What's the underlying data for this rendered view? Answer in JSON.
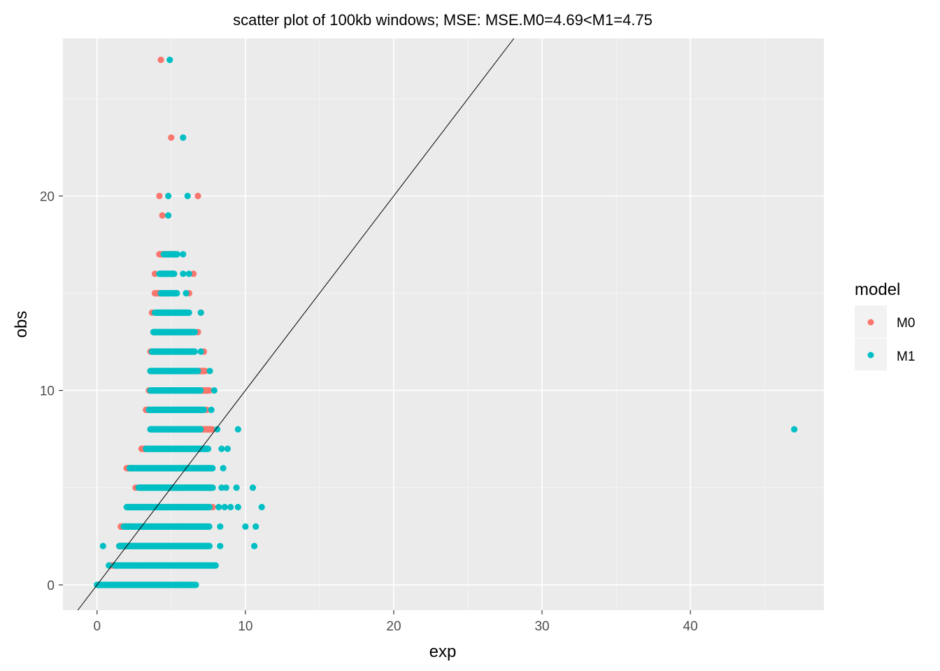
{
  "chart_data": {
    "type": "scatter",
    "title": "scatter plot of 100kb windows; MSE: MSE.M0=4.69<M1=4.75",
    "xlabel": "exp",
    "ylabel": "obs",
    "xlim": [
      -2.3,
      49
    ],
    "ylim": [
      -1.3,
      28.1
    ],
    "x_ticks": [
      0,
      10,
      20,
      30,
      40
    ],
    "y_ticks": [
      0,
      10,
      20
    ],
    "x_tick_labels": [
      "0",
      "10",
      "20",
      "30",
      "40"
    ],
    "y_tick_labels": [
      "0",
      "10",
      "20"
    ],
    "grid": true,
    "background": "#ebebeb",
    "reference_line": {
      "slope": 1,
      "intercept": 0,
      "color": "#000000"
    },
    "legend": {
      "title": "model",
      "position": "right"
    },
    "series": [
      {
        "name": "M0",
        "color": "#f8766d",
        "rows": [
          {
            "y": 27,
            "points": [
              4.3
            ]
          },
          {
            "y": 23,
            "points": [
              5.0
            ]
          },
          {
            "y": 20,
            "points": [
              4.2,
              6.8
            ]
          },
          {
            "y": 19,
            "points": [
              4.4
            ]
          },
          {
            "y": 17,
            "points": [
              4.2,
              4.5
            ]
          },
          {
            "y": 16,
            "points": [
              3.9,
              6.5
            ]
          },
          {
            "y": 15,
            "points": [
              3.9,
              4.1,
              6.2
            ]
          },
          {
            "y": 14,
            "points": [
              3.7,
              7.0
            ]
          },
          {
            "y": 13,
            "points": [
              3.8,
              6.8
            ]
          },
          {
            "y": 12,
            "points": [
              3.6,
              7.2
            ]
          },
          {
            "y": 11,
            "points": [
              3.6,
              7.0,
              7.2
            ]
          },
          {
            "y": 10,
            "points": [
              3.5,
              7.2,
              7.5
            ]
          },
          {
            "y": 9,
            "points": [
              3.3,
              7.4
            ]
          },
          {
            "y": 8,
            "points": [
              3.6,
              7.2,
              7.5
            ]
          },
          {
            "y": 7,
            "points": [
              3.1,
              7.0
            ]
          },
          {
            "y": 6,
            "points": [
              2.0,
              7.3
            ]
          },
          {
            "y": 5,
            "points": [
              2.6,
              7.6
            ]
          },
          {
            "y": 4,
            "points": [
              3.2,
              7.8
            ]
          },
          {
            "y": 3,
            "points": [
              1.7,
              2.2
            ]
          },
          {
            "y": 2,
            "points": [
              1.5,
              2.0
            ]
          },
          {
            "y": 1,
            "points": [
              0.9
            ]
          },
          {
            "y": 0,
            "points": [
              0.1
            ]
          }
        ],
        "segments": [
          {
            "y": 17,
            "from": 4.2,
            "to": 5.2
          },
          {
            "y": 15,
            "from": 3.9,
            "to": 4.5
          },
          {
            "y": 11,
            "from": 6.8,
            "to": 7.3
          },
          {
            "y": 10,
            "from": 7.0,
            "to": 7.6
          },
          {
            "y": 9,
            "from": 3.3,
            "to": 3.6
          },
          {
            "y": 8,
            "from": 7.0,
            "to": 7.8
          },
          {
            "y": 7,
            "from": 3.0,
            "to": 3.3
          },
          {
            "y": 6,
            "from": 2.0,
            "to": 2.4
          },
          {
            "y": 4,
            "from": 3.1,
            "to": 3.4
          },
          {
            "y": 3,
            "from": 1.6,
            "to": 2.2
          },
          {
            "y": 2,
            "from": 1.5,
            "to": 2.1
          },
          {
            "y": 1,
            "from": 0.9,
            "to": 1.3
          }
        ]
      },
      {
        "name": "M1",
        "color": "#00bfc4",
        "rows": [
          {
            "y": 27,
            "points": [
              4.9
            ]
          },
          {
            "y": 23,
            "points": [
              5.8
            ]
          },
          {
            "y": 20,
            "points": [
              4.8,
              6.1
            ]
          },
          {
            "y": 19,
            "points": [
              4.8
            ]
          },
          {
            "y": 17,
            "points": [
              5.0,
              5.8
            ]
          },
          {
            "y": 16,
            "points": [
              5.8,
              6.2
            ]
          },
          {
            "y": 15,
            "points": [
              6.0
            ]
          },
          {
            "y": 14,
            "points": [
              7.0
            ]
          },
          {
            "y": 12,
            "points": [
              7.0
            ]
          },
          {
            "y": 11,
            "points": [
              7.6
            ]
          },
          {
            "y": 10,
            "points": [
              7.9
            ]
          },
          {
            "y": 9,
            "points": [
              7.7
            ]
          },
          {
            "y": 8,
            "points": [
              8.1,
              9.5
            ]
          },
          {
            "y": 7,
            "points": [
              8.4,
              8.8
            ]
          },
          {
            "y": 6,
            "points": [
              8.5
            ]
          },
          {
            "y": 5,
            "points": [
              8.4,
              8.7,
              9.4,
              10.5
            ]
          },
          {
            "y": 4,
            "points": [
              8.2,
              8.6,
              9.0,
              9.5,
              11.1
            ]
          },
          {
            "y": 3,
            "points": [
              8.3,
              10.0,
              10.7
            ]
          },
          {
            "y": 2,
            "points": [
              0.4,
              8.3,
              10.6
            ]
          },
          {
            "y": 1,
            "points": [
              0.8
            ]
          },
          {
            "y": 0,
            "points": [
              0.0
            ]
          },
          {
            "y": 8,
            "points": [
              47.0
            ]
          }
        ],
        "segments": [
          {
            "y": 17,
            "from": 4.5,
            "to": 5.4
          },
          {
            "y": 16,
            "from": 4.2,
            "to": 5.2
          },
          {
            "y": 15,
            "from": 4.3,
            "to": 5.4
          },
          {
            "y": 14,
            "from": 3.9,
            "to": 6.2
          },
          {
            "y": 13,
            "from": 3.8,
            "to": 6.6
          },
          {
            "y": 12,
            "from": 3.7,
            "to": 6.6
          },
          {
            "y": 11,
            "from": 3.6,
            "to": 6.8
          },
          {
            "y": 10,
            "from": 3.6,
            "to": 7.0
          },
          {
            "y": 9,
            "from": 3.5,
            "to": 7.2
          },
          {
            "y": 8,
            "from": 3.6,
            "to": 7.0
          },
          {
            "y": 7,
            "from": 3.3,
            "to": 7.5
          },
          {
            "y": 6,
            "from": 2.2,
            "to": 7.8
          },
          {
            "y": 5,
            "from": 2.8,
            "to": 7.8
          },
          {
            "y": 4,
            "from": 2.0,
            "to": 7.6
          },
          {
            "y": 3,
            "from": 1.8,
            "to": 7.6
          },
          {
            "y": 2,
            "from": 1.5,
            "to": 7.6
          },
          {
            "y": 1,
            "from": 1.2,
            "to": 8.0
          },
          {
            "y": 0,
            "from": 0.0,
            "to": 6.7
          }
        ]
      }
    ]
  }
}
